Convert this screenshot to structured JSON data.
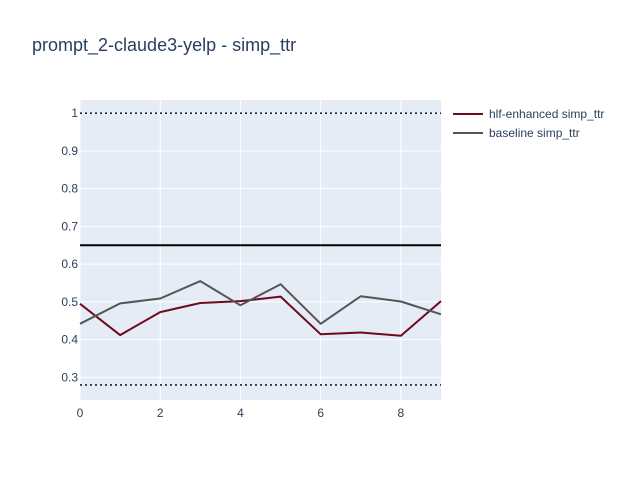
{
  "chart_data": {
    "type": "line",
    "title": "prompt_2-claude3-yelp - simp_ttr",
    "xlabel": "",
    "ylabel": "",
    "xlim": [
      0,
      9
    ],
    "ylim": [
      0.24,
      1.035
    ],
    "x_ticks": [
      0,
      2,
      4,
      6,
      8
    ],
    "y_ticks": [
      0.3,
      0.4,
      0.5,
      0.6,
      0.7,
      0.8,
      0.9,
      1
    ],
    "grid": true,
    "legend_position": "top-right",
    "x": [
      0,
      1,
      2,
      3,
      4,
      5,
      6,
      7,
      8,
      9
    ],
    "series": [
      {
        "name": "hlf-enhanced simp_ttr",
        "color": "#6e0a1e",
        "values": [
          0.495,
          0.412,
          0.473,
          0.497,
          0.502,
          0.514,
          0.414,
          0.419,
          0.41,
          0.502
        ]
      },
      {
        "name": "baseline simp_ttr",
        "color": "#555555",
        "values": [
          0.442,
          0.496,
          0.509,
          0.555,
          0.491,
          0.547,
          0.442,
          0.515,
          0.501,
          0.467
        ]
      }
    ],
    "reference_lines": [
      {
        "y": 1.0,
        "style": "dotted",
        "color": "#222222"
      },
      {
        "y": 0.65,
        "style": "solid",
        "color": "#000000"
      },
      {
        "y": 0.28,
        "style": "dotted",
        "color": "#222222"
      }
    ],
    "plot_background": "#e5ecf6",
    "text_color": "#2a3f5f"
  }
}
